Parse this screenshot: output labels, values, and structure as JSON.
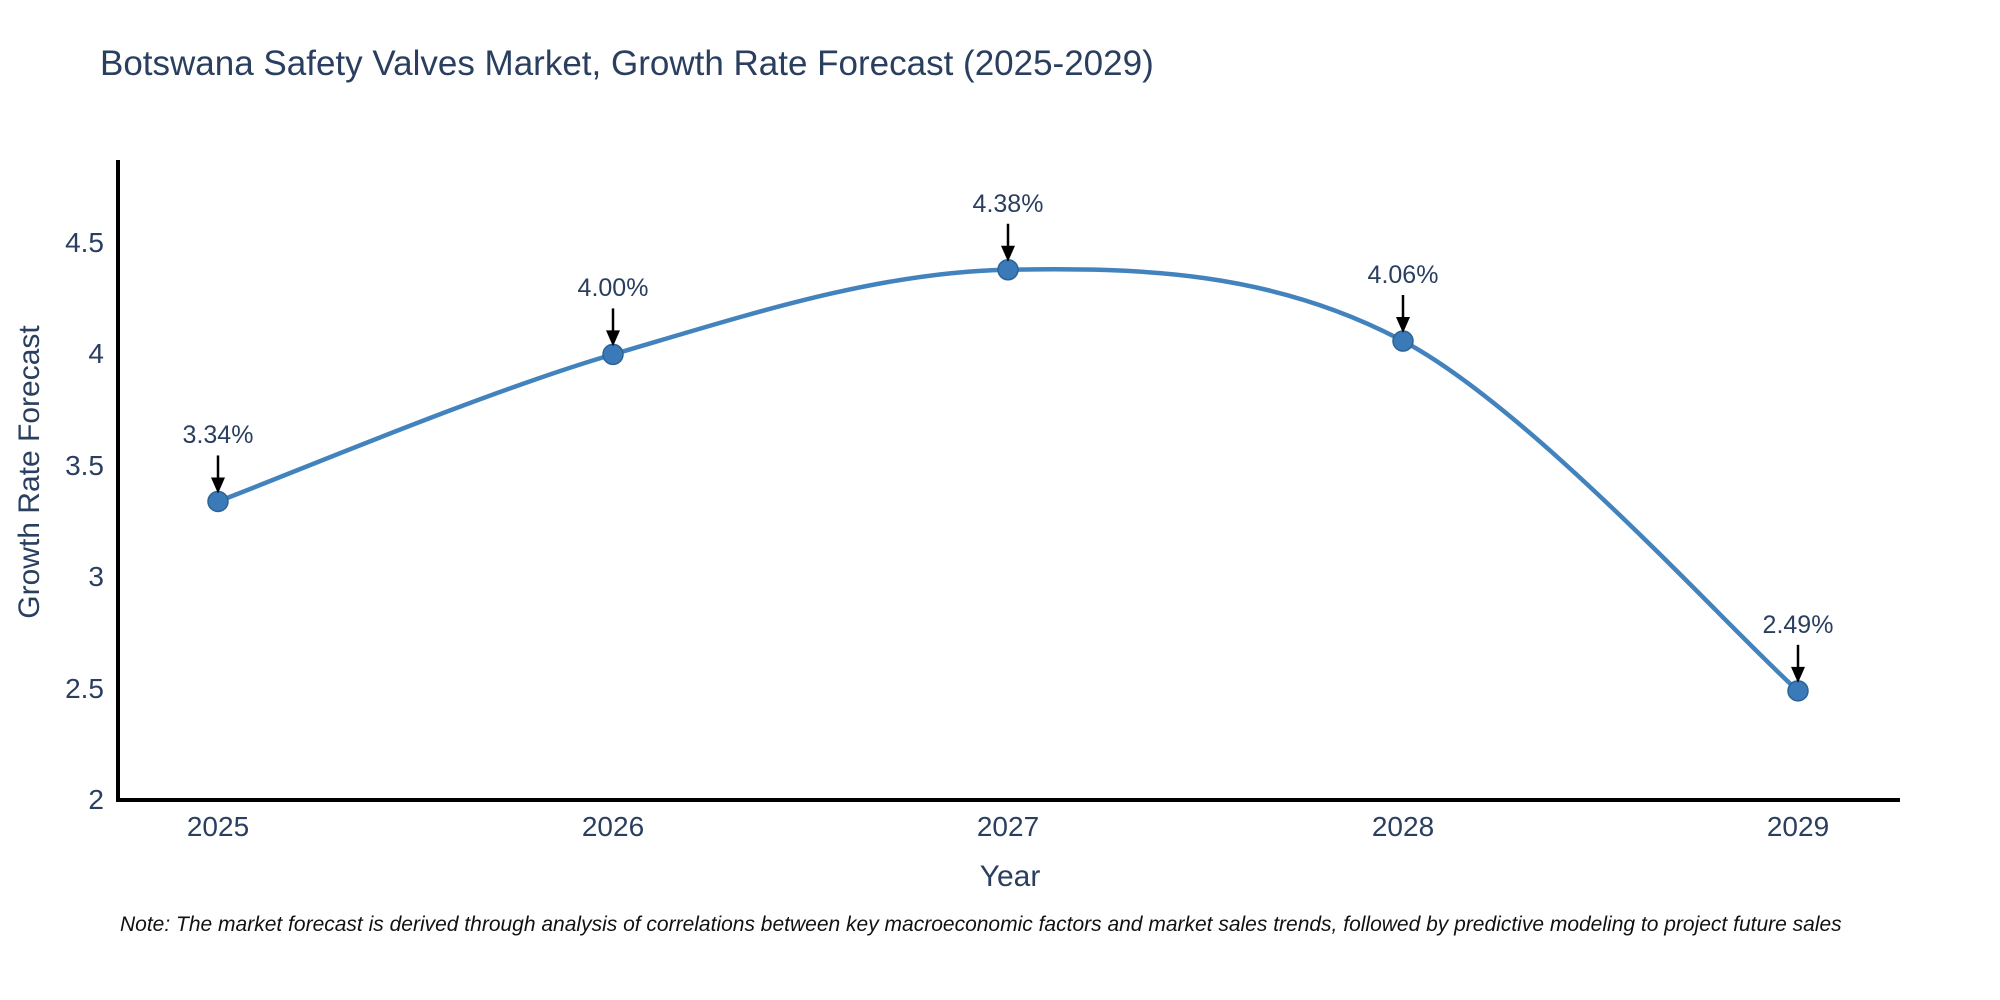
{
  "chart_data": {
    "type": "line",
    "title": "Botswana Safety Valves Market, Growth Rate Forecast (2025-2029)",
    "xlabel": "Year",
    "ylabel": "Growth Rate Forecast",
    "categories": [
      "2025",
      "2026",
      "2027",
      "2028",
      "2029"
    ],
    "values": [
      3.34,
      4.0,
      4.38,
      4.06,
      2.49
    ],
    "data_labels": [
      "3.34%",
      "4.00%",
      "4.38%",
      "4.06%",
      "2.49%"
    ],
    "y_ticks": [
      2,
      2.5,
      3,
      3.5,
      4,
      4.5
    ],
    "ylim": [
      2,
      4.87
    ],
    "line_shape": "spline",
    "grid": false,
    "legend": "none",
    "annotation_style": "value label with downward black arrow above each point",
    "colors": {
      "line": "#4383bd",
      "marker": "#3a7ab8",
      "marker_edge": "#2d6394",
      "axis": "#000000",
      "text": "#2a3f5f",
      "arrow": "#000000",
      "note": "#111111",
      "background": "#ffffff"
    }
  },
  "footnote": {
    "text": "Note: The market forecast is derived through analysis of correlations between key macroeconomic factors and market sales trends, followed by predictive modeling to project future sales"
  }
}
